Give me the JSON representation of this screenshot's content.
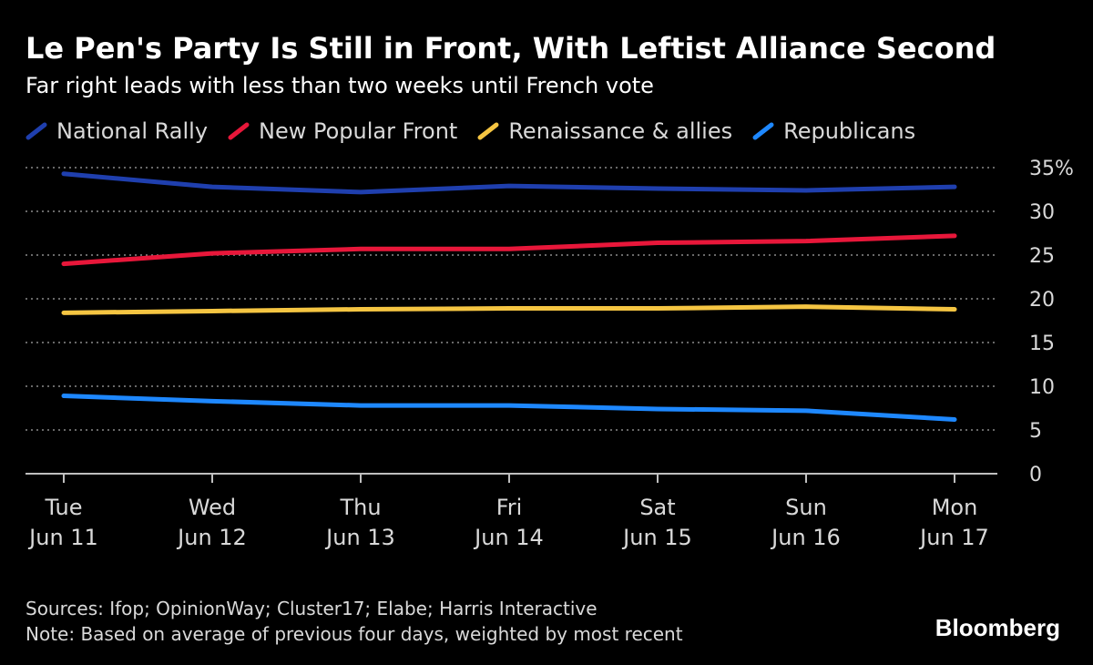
{
  "title": "Le Pen's Party Is Still in Front, With Leftist Alliance Second",
  "subtitle": "Far right leads with less than two weeks until French vote",
  "sources": "Sources: Ifop; OpinionWay; Cluster17; Elabe; Harris Interactive",
  "note": "Note: Based on average of previous four days, weighted by most recent",
  "brand": "Bloomberg",
  "chart_data": {
    "type": "line",
    "title": "Le Pen's Party Is Still in Front, With Leftist Alliance Second",
    "subtitle": "Far right leads with less than two weeks until French vote",
    "categories": [
      [
        "Tue",
        "Jun 11"
      ],
      [
        "Wed",
        "Jun 12"
      ],
      [
        "Thu",
        "Jun 13"
      ],
      [
        "Fri",
        "Jun 14"
      ],
      [
        "Sat",
        "Jun 15"
      ],
      [
        "Sun",
        "Jun 16"
      ],
      [
        "Mon",
        "Jun 17"
      ]
    ],
    "ylim": [
      0,
      35
    ],
    "yticks": [
      "0",
      "5",
      "10",
      "15",
      "20",
      "25",
      "30",
      "35%"
    ],
    "grid": true,
    "legend_position": "top",
    "series": [
      {
        "name": "National Rally",
        "color": "#1f3fae",
        "values": [
          34.3,
          32.8,
          32.2,
          32.9,
          32.6,
          32.4,
          32.8
        ]
      },
      {
        "name": "New Popular Front",
        "color": "#e8173a",
        "values": [
          24.0,
          25.2,
          25.7,
          25.7,
          26.4,
          26.6,
          27.2
        ]
      },
      {
        "name": "Renaissance & allies",
        "color": "#f5c542",
        "values": [
          18.4,
          18.6,
          18.8,
          18.9,
          18.9,
          19.1,
          18.8
        ]
      },
      {
        "name": "Republicans",
        "color": "#1e88ff",
        "values": [
          8.9,
          8.3,
          7.8,
          7.8,
          7.4,
          7.2,
          6.2
        ]
      }
    ]
  }
}
